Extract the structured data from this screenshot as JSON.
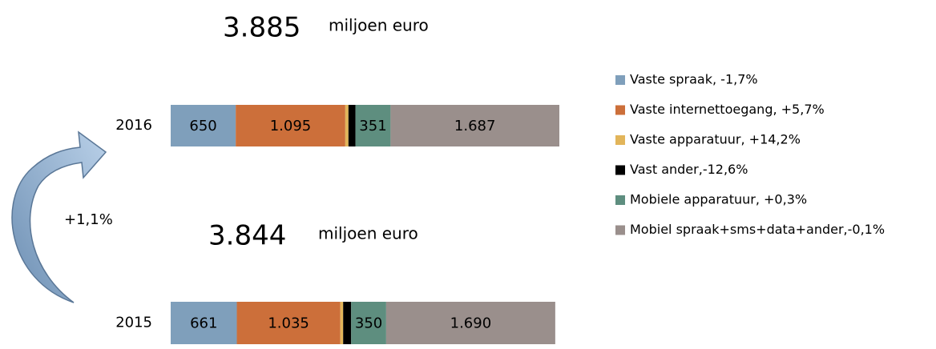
{
  "chart_data": {
    "type": "stacked-bar-horizontal",
    "categories": [
      "2016",
      "2015"
    ],
    "xlim": [
      0,
      3885
    ],
    "series": [
      {
        "name": "Vaste spraak, -1,7%",
        "color": "#7f9fbb",
        "values": [
          650,
          661
        ],
        "value_labels": [
          "650",
          "661"
        ]
      },
      {
        "name": "Vaste internettoegang, +5,7%",
        "color": "#cc6f3a",
        "values": [
          1095,
          1035
        ],
        "value_labels": [
          "1.095",
          "1.035"
        ]
      },
      {
        "name": "Vaste apparatuur, +14,2%",
        "color": "#e2b55a",
        "values": [
          32,
          28
        ],
        "value_labels": [
          null,
          null
        ]
      },
      {
        "name": "Vast ander,-12,6%",
        "color": "#000000",
        "values": [
          70,
          80
        ],
        "value_labels": [
          null,
          null
        ]
      },
      {
        "name": "Mobiele apparatuur, +0,3%",
        "color": "#5e8e7f",
        "values": [
          351,
          350
        ],
        "value_labels": [
          "351",
          "350"
        ]
      },
      {
        "name": "Mobiel spraak+sms+data+ander,-0,1%",
        "color": "#9a8f8c",
        "values": [
          1687,
          1690
        ],
        "value_labels": [
          "1.687",
          "1.690"
        ]
      }
    ],
    "annotations": [
      "3.885",
      "miljoen euro",
      "3.844",
      "miljoen euro",
      "+1,1%"
    ],
    "legend": "right"
  }
}
